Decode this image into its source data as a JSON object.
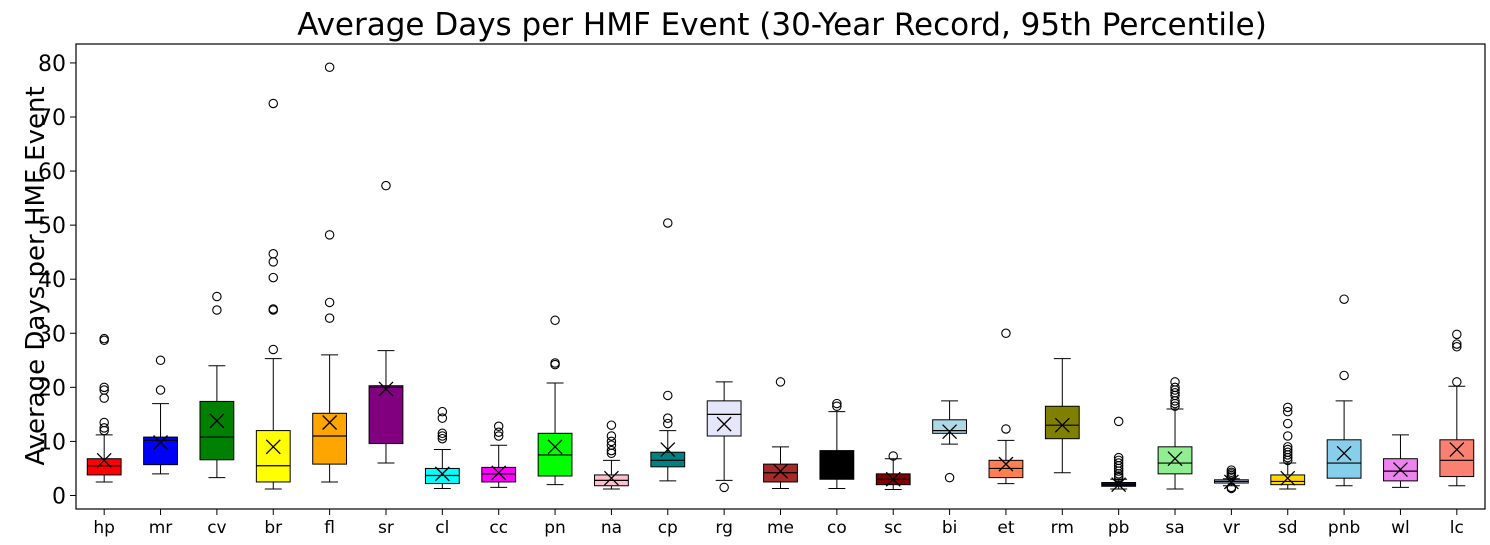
{
  "chart_data": {
    "type": "box",
    "title": "Average Days per HMF Event (30-Year Record, 95th Percentile)",
    "xlabel": "",
    "ylabel": "Average Days per HMF Event",
    "ylim": [
      -2.5,
      83.5
    ],
    "yticks": [
      0,
      10,
      20,
      30,
      40,
      50,
      60,
      70,
      80
    ],
    "grid": false,
    "mean_marker": "x",
    "outlier_marker": "open-circle",
    "boxes": [
      {
        "name": "hp",
        "color": "#ff0000",
        "whisker_low": 2.5,
        "q1": 3.8,
        "median": 5.5,
        "q3": 6.8,
        "whisker_high": 11.2,
        "mean": 6.5,
        "outliers": [
          12.0,
          12.5,
          13.5,
          18.0,
          19.5,
          20.0,
          28.7,
          29.0
        ]
      },
      {
        "name": "mr",
        "color": "#0000ff",
        "whisker_low": 4.0,
        "q1": 5.7,
        "median": 10.2,
        "q3": 10.8,
        "whisker_high": 17.0,
        "mean": 9.8,
        "outliers": [
          19.5,
          25.0
        ]
      },
      {
        "name": "cv",
        "color": "#008000",
        "whisker_low": 3.3,
        "q1": 6.6,
        "median": 10.8,
        "q3": 17.4,
        "whisker_high": 24.0,
        "mean": 13.8,
        "outliers": [
          34.3,
          36.8
        ]
      },
      {
        "name": "br",
        "color": "#ffff00",
        "whisker_low": 1.2,
        "q1": 2.5,
        "median": 5.5,
        "q3": 12.0,
        "whisker_high": 25.3,
        "mean": 9.0,
        "outliers": [
          27.0,
          34.3,
          34.5,
          40.3,
          43.2,
          44.7,
          72.5
        ]
      },
      {
        "name": "fl",
        "color": "#ffa500",
        "whisker_low": 2.5,
        "q1": 5.8,
        "median": 11.0,
        "q3": 15.2,
        "whisker_high": 26.0,
        "mean": 13.5,
        "outliers": [
          32.8,
          35.7,
          48.2,
          79.2
        ]
      },
      {
        "name": "sr",
        "color": "#800080",
        "whisker_low": 6.0,
        "q1": 9.6,
        "median": 20.0,
        "q3": 20.3,
        "whisker_high": 26.8,
        "mean": 19.7,
        "outliers": [
          57.3
        ]
      },
      {
        "name": "cl",
        "color": "#00ffff",
        "whisker_low": 1.3,
        "q1": 2.2,
        "median": 3.7,
        "q3": 5.0,
        "whisker_high": 8.5,
        "mean": 4.0,
        "outliers": [
          10.5,
          11.0,
          11.5,
          14.3,
          15.5
        ]
      },
      {
        "name": "cc",
        "color": "#ff00ff",
        "whisker_low": 1.5,
        "q1": 2.5,
        "median": 4.0,
        "q3": 5.2,
        "whisker_high": 9.3,
        "mean": 4.2,
        "outliers": [
          11.0,
          11.7,
          12.8
        ]
      },
      {
        "name": "pn",
        "color": "#00ff00",
        "whisker_low": 2.0,
        "q1": 3.6,
        "median": 7.5,
        "q3": 11.5,
        "whisker_high": 20.8,
        "mean": 9.0,
        "outliers": [
          24.2,
          24.5,
          32.4
        ]
      },
      {
        "name": "na",
        "color": "#ffc0cb",
        "whisker_low": 1.2,
        "q1": 1.8,
        "median": 2.8,
        "q3": 3.8,
        "whisker_high": 6.5,
        "mean": 3.2,
        "outliers": [
          7.8,
          8.3,
          9.3,
          10.0,
          11.0,
          13.0
        ]
      },
      {
        "name": "cp",
        "color": "#008080",
        "whisker_low": 2.7,
        "q1": 5.3,
        "median": 6.5,
        "q3": 8.0,
        "whisker_high": 12.0,
        "mean": 8.5,
        "outliers": [
          13.3,
          14.3,
          18.5,
          50.4
        ]
      },
      {
        "name": "rg",
        "color": "#e6e6fa",
        "whisker_low": 2.8,
        "q1": 11.0,
        "median": 15.0,
        "q3": 17.5,
        "whisker_high": 21.0,
        "mean": 13.2,
        "outliers": [
          1.5
        ]
      },
      {
        "name": "me",
        "color": "#a52a2a",
        "whisker_low": 1.3,
        "q1": 2.5,
        "median": 4.2,
        "q3": 5.8,
        "whisker_high": 9.0,
        "mean": 4.5,
        "outliers": [
          21.0
        ]
      },
      {
        "name": "co",
        "color": "#000000",
        "whisker_low": 1.3,
        "q1": 3.0,
        "median": 4.5,
        "q3": 8.3,
        "whisker_high": 15.5,
        "mean": 6.0,
        "outliers": [
          16.5,
          17.0
        ]
      },
      {
        "name": "sc",
        "color": "#800000",
        "whisker_low": 1.1,
        "q1": 2.0,
        "median": 3.0,
        "q3": 4.0,
        "whisker_high": 6.8,
        "mean": 3.0,
        "outliers": [
          7.3
        ]
      },
      {
        "name": "bi",
        "color": "#add8e6",
        "whisker_low": 9.5,
        "q1": 11.5,
        "median": 12.0,
        "q3": 14.0,
        "whisker_high": 17.5,
        "mean": 11.8,
        "outliers": [
          3.3
        ]
      },
      {
        "name": "et",
        "color": "#ff7f50",
        "whisker_low": 2.2,
        "q1": 3.3,
        "median": 5.0,
        "q3": 6.5,
        "whisker_high": 10.2,
        "mean": 5.8,
        "outliers": [
          12.3,
          30.0
        ]
      },
      {
        "name": "rm",
        "color": "#808000",
        "whisker_low": 4.2,
        "q1": 10.5,
        "median": 13.0,
        "q3": 16.5,
        "whisker_high": 25.3,
        "mean": 13.0,
        "outliers": []
      },
      {
        "name": "pb",
        "color": "#000080",
        "whisker_low": 1.2,
        "q1": 1.7,
        "median": 2.0,
        "q3": 2.4,
        "whisker_high": 3.0,
        "mean": 2.0,
        "outliers": [
          3.3,
          3.6,
          4.0,
          4.5,
          5.0,
          5.5,
          6.0,
          6.5,
          7.0,
          13.7
        ]
      },
      {
        "name": "sa",
        "color": "#90ee90",
        "whisker_low": 1.2,
        "q1": 4.0,
        "median": 6.0,
        "q3": 9.0,
        "whisker_high": 16.0,
        "mean": 6.8,
        "outliers": [
          16.5,
          17.0,
          17.5,
          18.5,
          19.0,
          19.5,
          20.0,
          21.0
        ]
      },
      {
        "name": "vr",
        "color": "#b0c4de",
        "whisker_low": 1.8,
        "q1": 2.3,
        "median": 2.6,
        "q3": 2.9,
        "whisker_high": 3.1,
        "mean": 2.5,
        "outliers": [
          1.3,
          1.5,
          3.4,
          3.7,
          4.0,
          4.3,
          4.7
        ]
      },
      {
        "name": "sd",
        "color": "#ffd700",
        "whisker_low": 1.2,
        "q1": 2.0,
        "median": 2.6,
        "q3": 3.8,
        "whisker_high": 6.0,
        "mean": 3.2,
        "outliers": [
          6.5,
          7.0,
          7.5,
          8.0,
          8.5,
          9.0,
          11.0,
          13.3,
          15.5,
          16.3
        ]
      },
      {
        "name": "pnb",
        "color": "#87ceeb",
        "whisker_low": 1.8,
        "q1": 3.2,
        "median": 6.0,
        "q3": 10.3,
        "whisker_high": 17.5,
        "mean": 7.8,
        "outliers": [
          22.2,
          36.3
        ]
      },
      {
        "name": "wl",
        "color": "#ee82ee",
        "whisker_low": 1.5,
        "q1": 2.7,
        "median": 4.5,
        "q3": 6.8,
        "whisker_high": 11.2,
        "mean": 4.8,
        "outliers": []
      },
      {
        "name": "lc",
        "color": "#fa8072",
        "whisker_low": 1.8,
        "q1": 3.5,
        "median": 6.5,
        "q3": 10.3,
        "whisker_high": 20.2,
        "mean": 8.5,
        "outliers": [
          21.0,
          27.5,
          28.0,
          29.8
        ]
      }
    ]
  }
}
